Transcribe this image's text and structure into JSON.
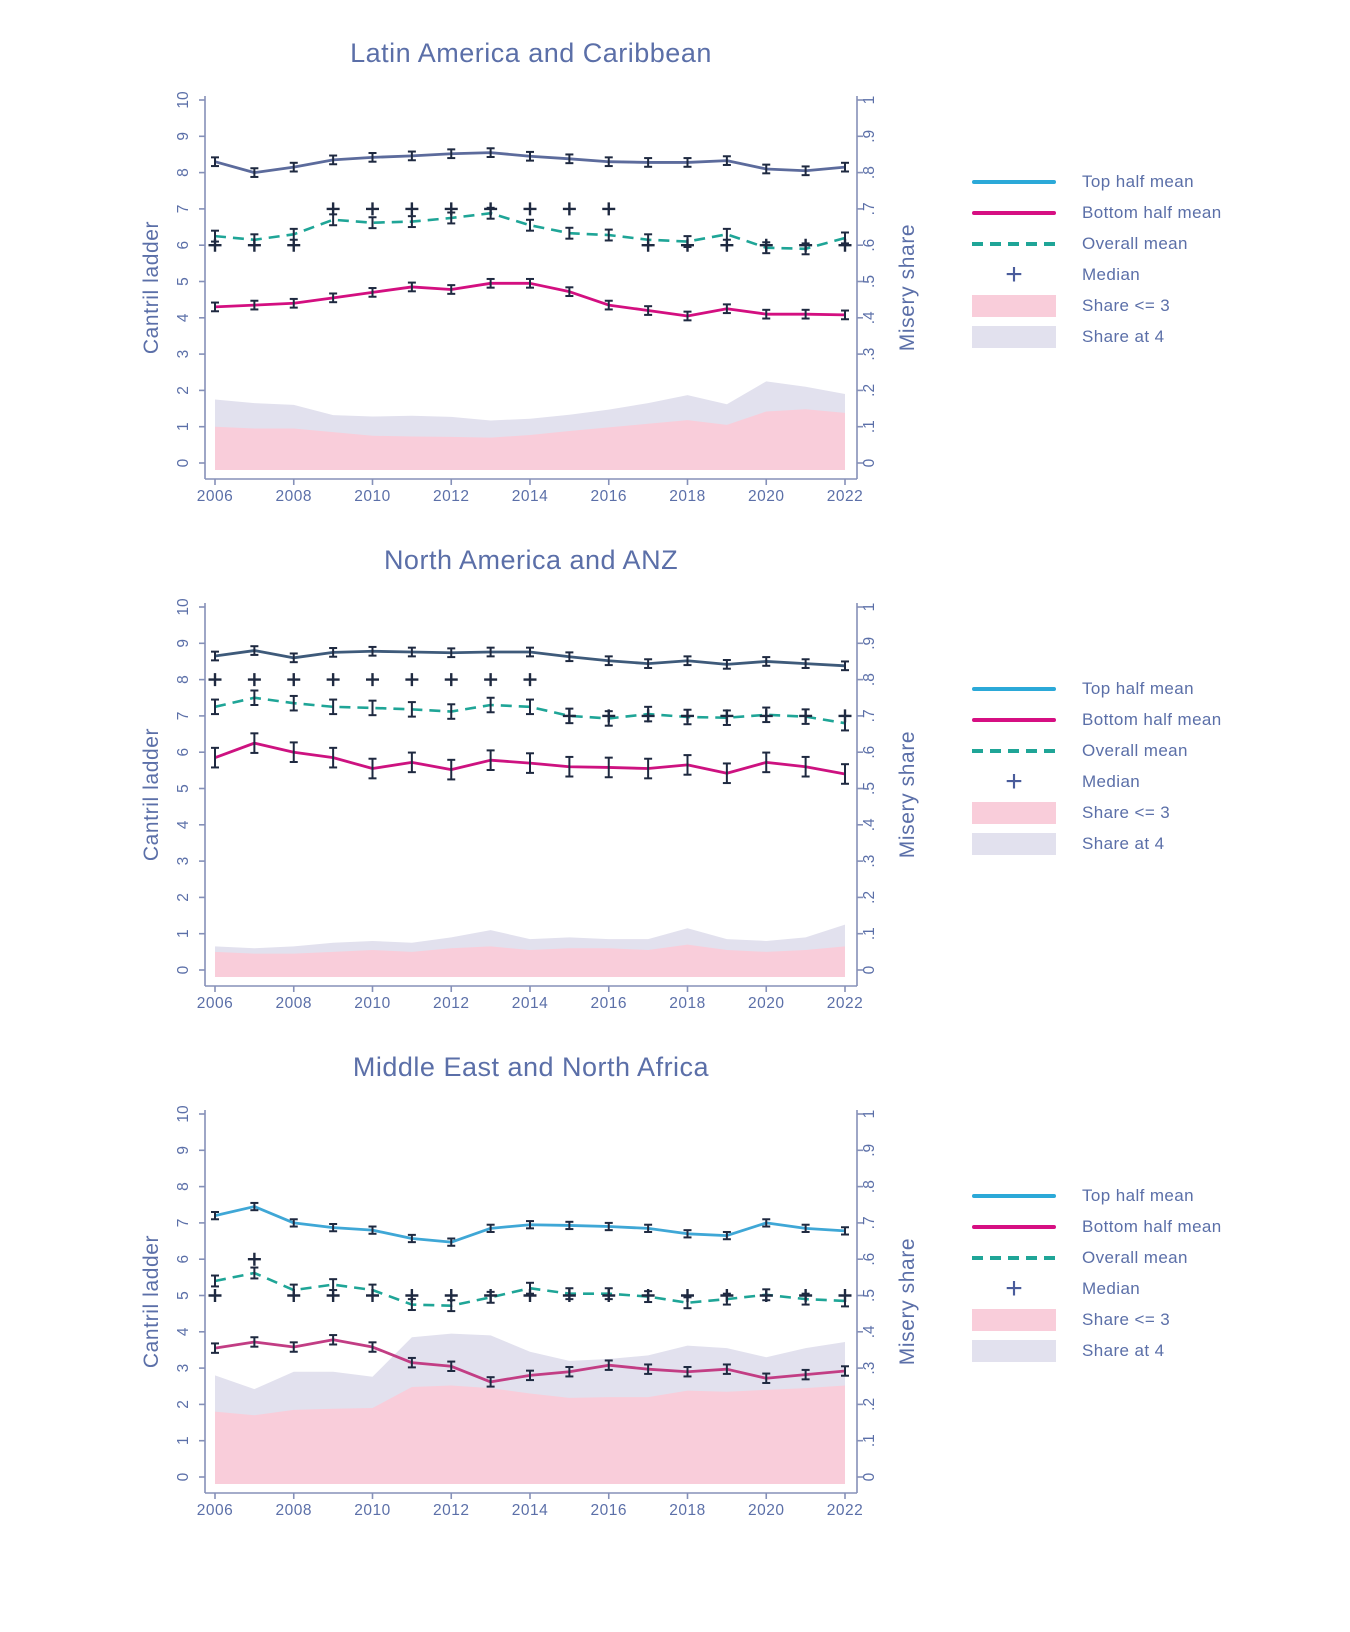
{
  "chart_data": {
    "type": "line",
    "years": [
      2006,
      2007,
      2008,
      2009,
      2010,
      2011,
      2012,
      2013,
      2014,
      2015,
      2016,
      2017,
      2018,
      2019,
      2020,
      2021,
      2022
    ],
    "axes": {
      "left_label": "Cantril ladder",
      "right_label": "Misery share",
      "left_ticks": [
        "0",
        "1",
        "2",
        "3",
        "4",
        "5",
        "6",
        "7",
        "8",
        "9",
        "10"
      ],
      "right_ticks": [
        "0",
        ".1",
        ".2",
        ".3",
        ".4",
        ".5",
        ".6",
        ".7",
        ".8",
        ".9",
        "1"
      ],
      "x_ticks": [
        "2006",
        "2008",
        "2010",
        "2012",
        "2014",
        "2016",
        "2018",
        "2020",
        "2022"
      ],
      "left_range": [
        0,
        10
      ],
      "right_range": [
        0,
        1
      ],
      "grid": false
    },
    "style": {
      "text_color": "#5b6fa8",
      "axis_color": "#8590b8",
      "overall_color": "#1fa597",
      "marker_color": "#1e2940",
      "share_le3_color": "#f9cdda",
      "share_at4_color": "#e2e1ee",
      "legend_top_color": "#2ba9d8",
      "legend_bottom_color": "#d60f82"
    },
    "legend": [
      {
        "label": "Top half mean",
        "type": "line",
        "color": "#2ba9d8"
      },
      {
        "label": "Bottom half mean",
        "type": "line",
        "color": "#d60f82"
      },
      {
        "label": "Overall mean",
        "type": "dash",
        "color": "#1fa597"
      },
      {
        "label": "Median",
        "type": "plus",
        "color": "#4a5c9b"
      },
      {
        "label": "Share <= 3",
        "type": "area",
        "color": "#f9cdda"
      },
      {
        "label": "Share at 4",
        "type": "area",
        "color": "#e2e1ee"
      }
    ],
    "panels": [
      {
        "title": "Latin America and Caribbean",
        "top_color": "#5c6b9c",
        "bottom_color": "#d30f80",
        "err_half": {
          "top": 0.12,
          "overall": 0.15,
          "bottom": 0.12
        },
        "series": {
          "top_half_mean": [
            8.3,
            8.0,
            8.15,
            8.35,
            8.42,
            8.46,
            8.52,
            8.55,
            8.45,
            8.38,
            8.3,
            8.28,
            8.28,
            8.33,
            8.1,
            8.05,
            8.15
          ],
          "overall_mean": [
            6.25,
            6.15,
            6.3,
            6.7,
            6.62,
            6.65,
            6.75,
            6.88,
            6.55,
            6.33,
            6.28,
            6.15,
            6.1,
            6.3,
            5.93,
            5.9,
            6.2
          ],
          "median": [
            6,
            6,
            6,
            7,
            7,
            7,
            7,
            7,
            7,
            7,
            7,
            6,
            6,
            6,
            6,
            6,
            6
          ],
          "bottom_half_mean": [
            4.3,
            4.35,
            4.4,
            4.55,
            4.7,
            4.85,
            4.78,
            4.95,
            4.95,
            4.72,
            4.35,
            4.2,
            4.05,
            4.25,
            4.1,
            4.1,
            4.08
          ],
          "share_le3": [
            0.1,
            0.095,
            0.095,
            0.085,
            0.075,
            0.073,
            0.072,
            0.07,
            0.077,
            0.088,
            0.098,
            0.108,
            0.118,
            0.105,
            0.142,
            0.148,
            0.138
          ],
          "share_at4": [
            0.075,
            0.07,
            0.065,
            0.047,
            0.053,
            0.057,
            0.055,
            0.047,
            0.045,
            0.045,
            0.049,
            0.057,
            0.069,
            0.057,
            0.083,
            0.062,
            0.052
          ]
        }
      },
      {
        "title": "North America and ANZ",
        "top_color": "#3e5a7a",
        "bottom_color": "#cd1280",
        "err_half": {
          "top": 0.12,
          "overall": 0.2,
          "bottom": 0.27
        },
        "series": {
          "top_half_mean": [
            8.65,
            8.8,
            8.6,
            8.75,
            8.78,
            8.76,
            8.74,
            8.76,
            8.76,
            8.63,
            8.52,
            8.44,
            8.52,
            8.42,
            8.5,
            8.44,
            8.38
          ],
          "overall_mean": [
            7.25,
            7.5,
            7.35,
            7.25,
            7.22,
            7.18,
            7.12,
            7.3,
            7.25,
            7.0,
            6.93,
            7.05,
            6.97,
            6.95,
            7.03,
            6.98,
            6.8
          ],
          "median": [
            8,
            8,
            8,
            8,
            8,
            8,
            8,
            8,
            8,
            7,
            7,
            7,
            7,
            7,
            7,
            7,
            7
          ],
          "bottom_half_mean": [
            5.85,
            6.25,
            6.0,
            5.85,
            5.55,
            5.72,
            5.52,
            5.78,
            5.7,
            5.6,
            5.58,
            5.55,
            5.65,
            5.42,
            5.72,
            5.6,
            5.4
          ],
          "share_le3": [
            0.05,
            0.045,
            0.045,
            0.05,
            0.055,
            0.05,
            0.06,
            0.065,
            0.055,
            0.06,
            0.06,
            0.055,
            0.07,
            0.055,
            0.05,
            0.055,
            0.065
          ],
          "share_at4": [
            0.015,
            0.015,
            0.02,
            0.025,
            0.025,
            0.025,
            0.03,
            0.045,
            0.03,
            0.03,
            0.025,
            0.03,
            0.045,
            0.03,
            0.03,
            0.035,
            0.06
          ]
        }
      },
      {
        "title": "Middle East and North Africa",
        "top_color": "#3fa7d6",
        "bottom_color": "#c23d84",
        "err_half": {
          "top": 0.1,
          "overall": 0.15,
          "bottom": 0.13
        },
        "series": {
          "top_half_mean": [
            7.2,
            7.45,
            7.0,
            6.87,
            6.8,
            6.57,
            6.47,
            6.85,
            6.95,
            6.93,
            6.9,
            6.85,
            6.7,
            6.65,
            7.0,
            6.85,
            6.78
          ],
          "overall_mean": [
            5.4,
            5.62,
            5.15,
            5.3,
            5.15,
            4.75,
            4.72,
            4.95,
            5.2,
            5.05,
            5.05,
            4.97,
            4.8,
            4.9,
            5.02,
            4.9,
            4.85
          ],
          "median": [
            5,
            6,
            5,
            5,
            5,
            5,
            5,
            5,
            5,
            5,
            5,
            5,
            5,
            5,
            5,
            5,
            5
          ],
          "bottom_half_mean": [
            3.55,
            3.72,
            3.58,
            3.78,
            3.58,
            3.15,
            3.05,
            2.62,
            2.8,
            2.9,
            3.08,
            2.97,
            2.9,
            2.97,
            2.72,
            2.82,
            2.92
          ],
          "share_le3": [
            0.18,
            0.17,
            0.185,
            0.188,
            0.19,
            0.248,
            0.252,
            0.245,
            0.23,
            0.218,
            0.22,
            0.22,
            0.238,
            0.235,
            0.24,
            0.245,
            0.252
          ],
          "share_at4": [
            0.1,
            0.072,
            0.105,
            0.102,
            0.086,
            0.137,
            0.143,
            0.145,
            0.115,
            0.102,
            0.105,
            0.115,
            0.124,
            0.12,
            0.09,
            0.11,
            0.12
          ]
        }
      }
    ]
  }
}
